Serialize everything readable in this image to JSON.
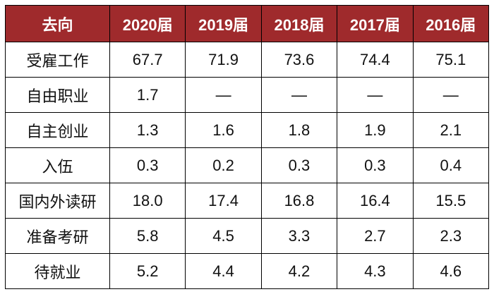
{
  "table": {
    "header": [
      "去向",
      "2020届",
      "2019届",
      "2018届",
      "2017届",
      "2016届"
    ],
    "rows": [
      [
        "受雇工作",
        "67.7",
        "71.9",
        "73.6",
        "74.4",
        "75.1"
      ],
      [
        "自由职业",
        "1.7",
        "—",
        "—",
        "—",
        "—"
      ],
      [
        "自主创业",
        "1.3",
        "1.6",
        "1.8",
        "1.9",
        "2.1"
      ],
      [
        "入伍",
        "0.3",
        "0.2",
        "0.3",
        "0.3",
        "0.4"
      ],
      [
        "国内外读研",
        "18.0",
        "17.4",
        "16.8",
        "16.4",
        "15.5"
      ],
      [
        "准备考研",
        "5.8",
        "4.5",
        "3.3",
        "2.7",
        "2.3"
      ],
      [
        "待就业",
        "5.2",
        "4.4",
        "4.2",
        "4.3",
        "4.6"
      ]
    ]
  }
}
